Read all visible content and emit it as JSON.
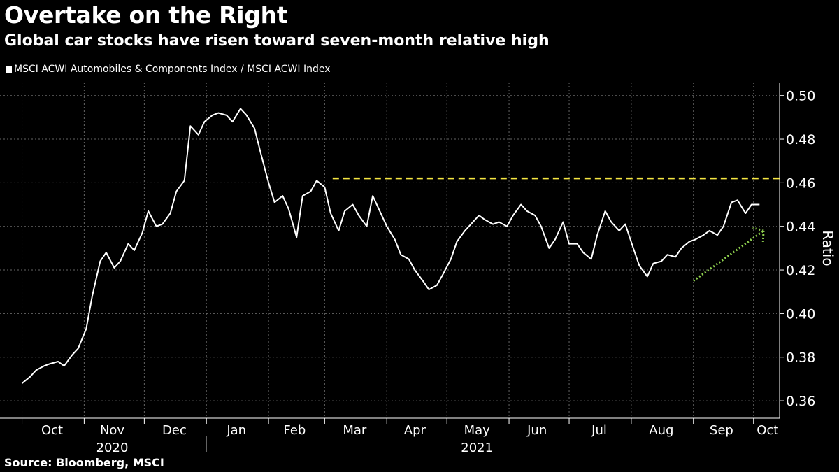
{
  "header": {
    "title": "Overtake on the Right",
    "subtitle": "Global car stocks have risen toward seven-month relative high"
  },
  "footer": {
    "source": "Source: Bloomberg, MSCI"
  },
  "colors": {
    "background": "#000000",
    "line": "#ffffff",
    "grid": "#666666",
    "threshold": "#f5e642",
    "trend_arrow": "#8fd14f"
  },
  "chart_data": {
    "type": "line",
    "series": [
      {
        "name": "MSCI ACWI Automobiles & Components Index / MSCI ACWI Index",
        "x": [
          "2020-10-01",
          "2020-10-05",
          "2020-10-08",
          "2020-10-12",
          "2020-10-15",
          "2020-10-19",
          "2020-10-22",
          "2020-10-26",
          "2020-10-29",
          "2020-11-02",
          "2020-11-05",
          "2020-11-09",
          "2020-11-12",
          "2020-11-16",
          "2020-11-19",
          "2020-11-23",
          "2020-11-26",
          "2020-11-30",
          "2020-12-03",
          "2020-12-07",
          "2020-12-10",
          "2020-12-14",
          "2020-12-17",
          "2020-12-21",
          "2020-12-24",
          "2020-12-28",
          "2020-12-31",
          "2021-01-04",
          "2021-01-07",
          "2021-01-11",
          "2021-01-14",
          "2021-01-18",
          "2021-01-21",
          "2021-01-25",
          "2021-01-28",
          "2021-02-01",
          "2021-02-04",
          "2021-02-08",
          "2021-02-11",
          "2021-02-15",
          "2021-02-18",
          "2021-02-22",
          "2021-02-25",
          "2021-03-01",
          "2021-03-04",
          "2021-03-08",
          "2021-03-11",
          "2021-03-15",
          "2021-03-18",
          "2021-03-22",
          "2021-03-25",
          "2021-03-29",
          "2021-04-01",
          "2021-04-05",
          "2021-04-08",
          "2021-04-12",
          "2021-04-15",
          "2021-04-19",
          "2021-04-22",
          "2021-04-26",
          "2021-04-29",
          "2021-05-03",
          "2021-05-06",
          "2021-05-10",
          "2021-05-13",
          "2021-05-17",
          "2021-05-20",
          "2021-05-24",
          "2021-05-27",
          "2021-05-31",
          "2021-06-03",
          "2021-06-07",
          "2021-06-10",
          "2021-06-14",
          "2021-06-17",
          "2021-06-21",
          "2021-06-24",
          "2021-06-28",
          "2021-07-01",
          "2021-07-05",
          "2021-07-08",
          "2021-07-12",
          "2021-07-15",
          "2021-07-19",
          "2021-07-22",
          "2021-07-26",
          "2021-07-29",
          "2021-08-02",
          "2021-08-05",
          "2021-08-09",
          "2021-08-12",
          "2021-08-16",
          "2021-08-19",
          "2021-08-23",
          "2021-08-26",
          "2021-08-30",
          "2021-09-02",
          "2021-09-06",
          "2021-09-09",
          "2021-09-13",
          "2021-09-16",
          "2021-09-20",
          "2021-09-23",
          "2021-09-27",
          "2021-09-30",
          "2021-10-04"
        ],
        "values": [
          0.368,
          0.371,
          0.374,
          0.376,
          0.377,
          0.378,
          0.376,
          0.381,
          0.384,
          0.393,
          0.408,
          0.424,
          0.428,
          0.421,
          0.424,
          0.432,
          0.429,
          0.437,
          0.447,
          0.44,
          0.441,
          0.446,
          0.456,
          0.461,
          0.486,
          0.482,
          0.488,
          0.491,
          0.492,
          0.491,
          0.488,
          0.494,
          0.491,
          0.485,
          0.474,
          0.46,
          0.451,
          0.454,
          0.448,
          0.435,
          0.454,
          0.456,
          0.461,
          0.458,
          0.446,
          0.438,
          0.447,
          0.45,
          0.445,
          0.44,
          0.454,
          0.446,
          0.44,
          0.434,
          0.427,
          0.425,
          0.42,
          0.415,
          0.411,
          0.413,
          0.418,
          0.425,
          0.433,
          0.438,
          0.441,
          0.445,
          0.443,
          0.441,
          0.442,
          0.44,
          0.445,
          0.45,
          0.447,
          0.445,
          0.44,
          0.43,
          0.434,
          0.442,
          0.432,
          0.432,
          0.428,
          0.425,
          0.436,
          0.447,
          0.442,
          0.438,
          0.441,
          0.43,
          0.422,
          0.417,
          0.423,
          0.424,
          0.427,
          0.426,
          0.43,
          0.433,
          0.434,
          0.436,
          0.438,
          0.436,
          0.44,
          0.451,
          0.452,
          0.446,
          0.45,
          0.45
        ]
      }
    ],
    "ylabel": "Ratio",
    "ylim": [
      0.352,
      0.506
    ],
    "yticks": [
      0.36,
      0.38,
      0.4,
      0.42,
      0.44,
      0.46,
      0.48,
      0.5
    ],
    "ytick_labels": [
      "0.36",
      "0.38",
      "0.40",
      "0.42",
      "0.44",
      "0.46",
      "0.48",
      "0.50"
    ],
    "xlim": [
      "2020-09-20",
      "2021-10-14"
    ],
    "month_separators": [
      "2020-10-01",
      "2020-11-01",
      "2020-12-01",
      "2021-01-01",
      "2021-02-01",
      "2021-03-01",
      "2021-04-01",
      "2021-05-01",
      "2021-06-01",
      "2021-07-01",
      "2021-08-01",
      "2021-09-01",
      "2021-10-01"
    ],
    "month_labels": [
      {
        "label": "Oct",
        "at": "2020-10-16"
      },
      {
        "label": "Nov",
        "at": "2020-11-15"
      },
      {
        "label": "Dec",
        "at": "2020-12-16"
      },
      {
        "label": "Jan",
        "at": "2021-01-16"
      },
      {
        "label": "Feb",
        "at": "2021-02-14"
      },
      {
        "label": "Mar",
        "at": "2021-03-16"
      },
      {
        "label": "Apr",
        "at": "2021-04-15"
      },
      {
        "label": "May",
        "at": "2021-05-16"
      },
      {
        "label": "Jun",
        "at": "2021-06-15"
      },
      {
        "label": "Jul",
        "at": "2021-07-16"
      },
      {
        "label": "Aug",
        "at": "2021-08-16"
      },
      {
        "label": "Sep",
        "at": "2021-09-15"
      },
      {
        "label": "Oct",
        "at": "2021-10-08"
      }
    ],
    "year_labels": [
      {
        "label": "2020",
        "at": "2020-11-15"
      },
      {
        "label": "2021",
        "at": "2021-05-16"
      }
    ],
    "year_separator": "2021-01-01",
    "annotations": [
      {
        "type": "hline",
        "y": 0.462,
        "from": "2021-03-05",
        "to": "2021-10-14",
        "style": "dashed"
      },
      {
        "type": "arrow",
        "from": {
          "x": "2021-09-01",
          "y": 0.415
        },
        "to": {
          "x": "2021-10-06",
          "y": 0.438
        },
        "style": "dotted"
      }
    ],
    "grid": true
  }
}
